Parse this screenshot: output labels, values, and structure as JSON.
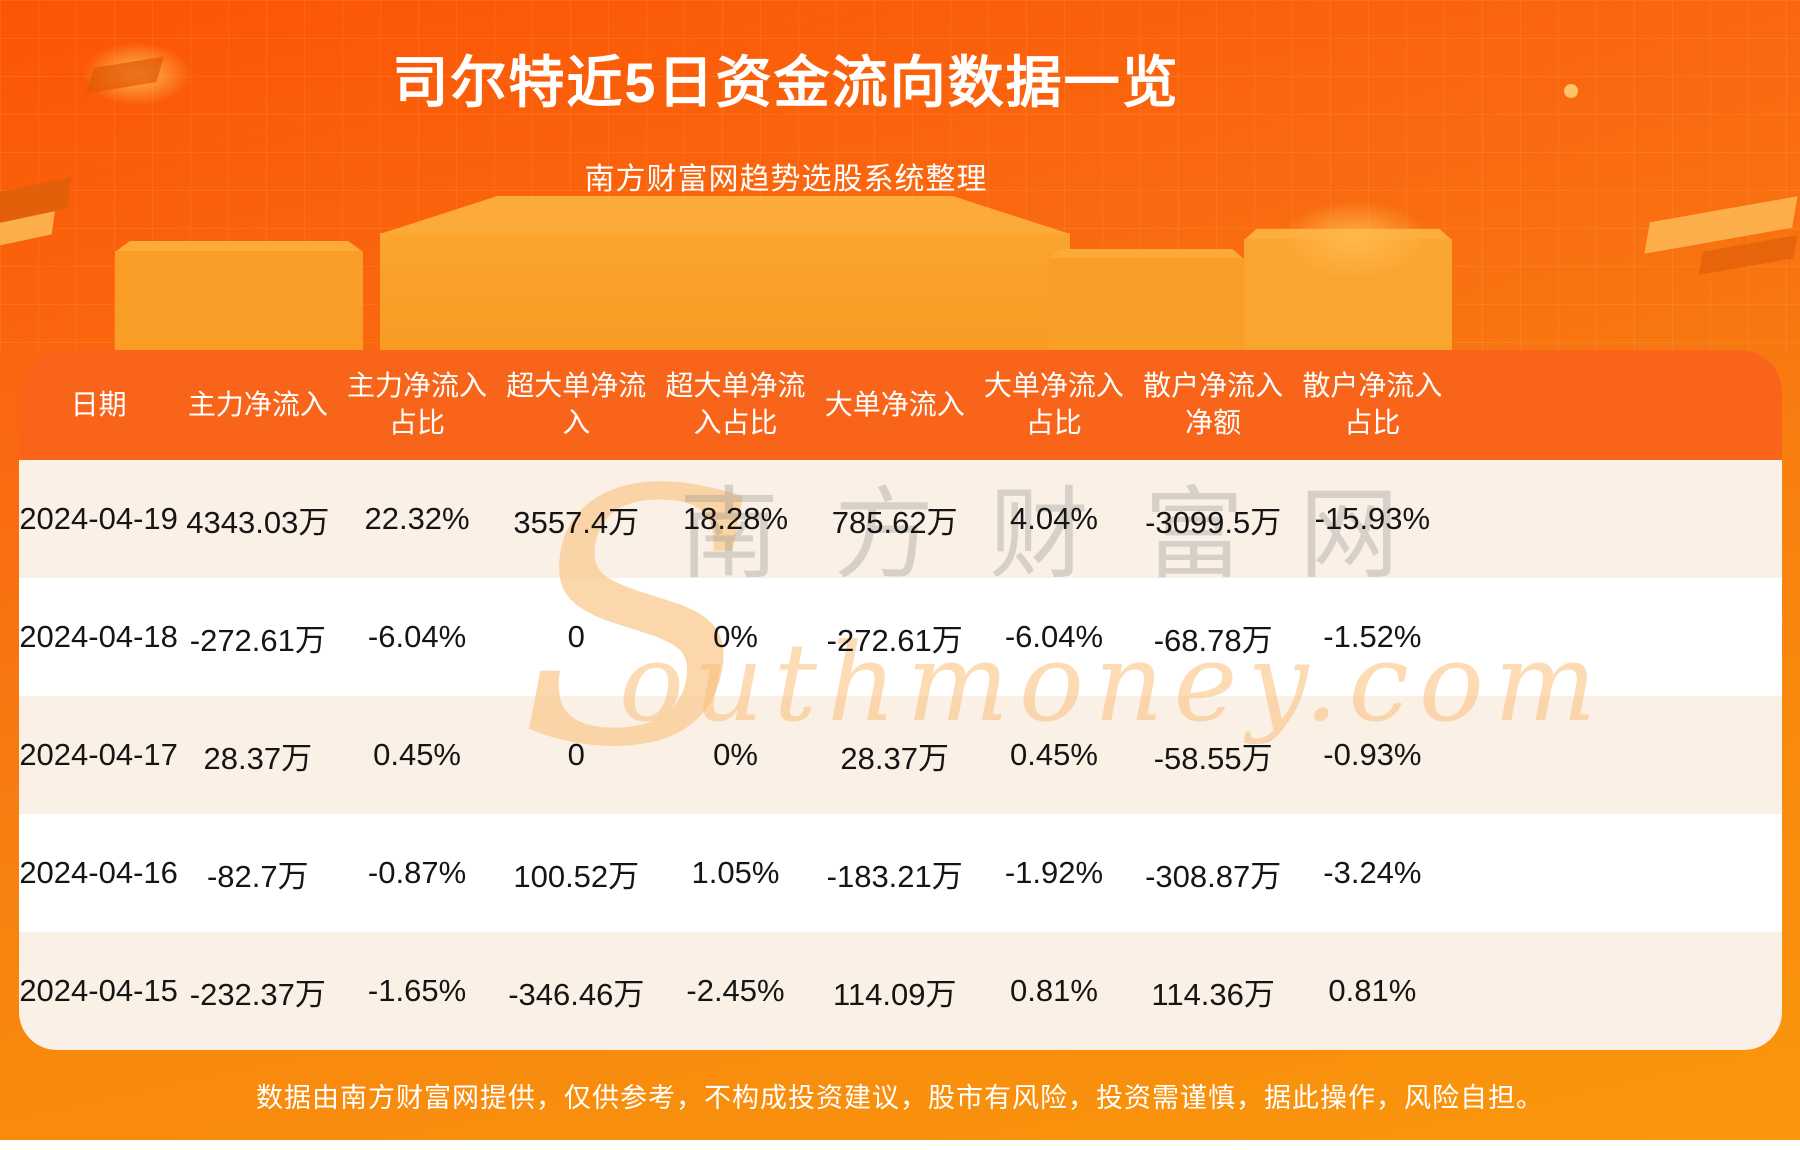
{
  "page": {
    "title": "司尔特近5日资金流向数据一览",
    "subtitle": "南方财富网趋势选股系统整理"
  },
  "chart_data": {
    "type": "table",
    "title": "司尔特近5日资金流向数据一览",
    "columns": [
      "日期",
      "主力净流入",
      "主力净流入占比",
      "超大单净流入",
      "超大单净流入占比",
      "大单净流入",
      "大单净流入占比",
      "散户净流入净额",
      "散户净流入占比"
    ],
    "rows": [
      [
        "2024-04-19",
        "4343.03万",
        "22.32%",
        "3557.4万",
        "18.28%",
        "785.62万",
        "4.04%",
        "-3099.5万",
        "-15.93%"
      ],
      [
        "2024-04-18",
        "-272.61万",
        "-6.04%",
        "0",
        "0%",
        "-272.61万",
        "-6.04%",
        "-68.78万",
        "-1.52%"
      ],
      [
        "2024-04-17",
        "28.37万",
        "0.45%",
        "0",
        "0%",
        "28.37万",
        "0.45%",
        "-58.55万",
        "-0.93%"
      ],
      [
        "2024-04-16",
        "-82.7万",
        "-0.87%",
        "100.52万",
        "1.05%",
        "-183.21万",
        "-1.92%",
        "-308.87万",
        "-3.24%"
      ],
      [
        "2024-04-15",
        "-232.37万",
        "-1.65%",
        "-346.46万",
        "-2.45%",
        "114.09万",
        "0.81%",
        "114.36万",
        "0.81%"
      ]
    ]
  },
  "header_lines": [
    [
      "日期",
      ""
    ],
    [
      "主力净流入",
      ""
    ],
    [
      "主力净流入",
      "占比"
    ],
    [
      "超大单净流",
      "入"
    ],
    [
      "超大单净流",
      "入占比"
    ],
    [
      "大单净流入",
      ""
    ],
    [
      "大单净流入",
      "占比"
    ],
    [
      "散户净流入",
      "净额"
    ],
    [
      "散户净流入",
      "占比"
    ]
  ],
  "watermark": {
    "initial": "S",
    "cn": "南方财富网",
    "en": "outhmoney.com"
  },
  "footer": {
    "disclaimer": "数据由南方财富网提供，仅供参考，不构成投资建议，股市有风险，投资需谨慎，据此操作，风险自担。"
  },
  "colors": {
    "background_top": "#fc5404",
    "background_bottom": "#f9970c",
    "table_header_bg": "#f8641a",
    "row_cream": "#fbf0e6",
    "row_white": "#ffffff",
    "cell_text": "#151515",
    "heading_text": "#ffffff",
    "podium_light": "#fba531"
  }
}
